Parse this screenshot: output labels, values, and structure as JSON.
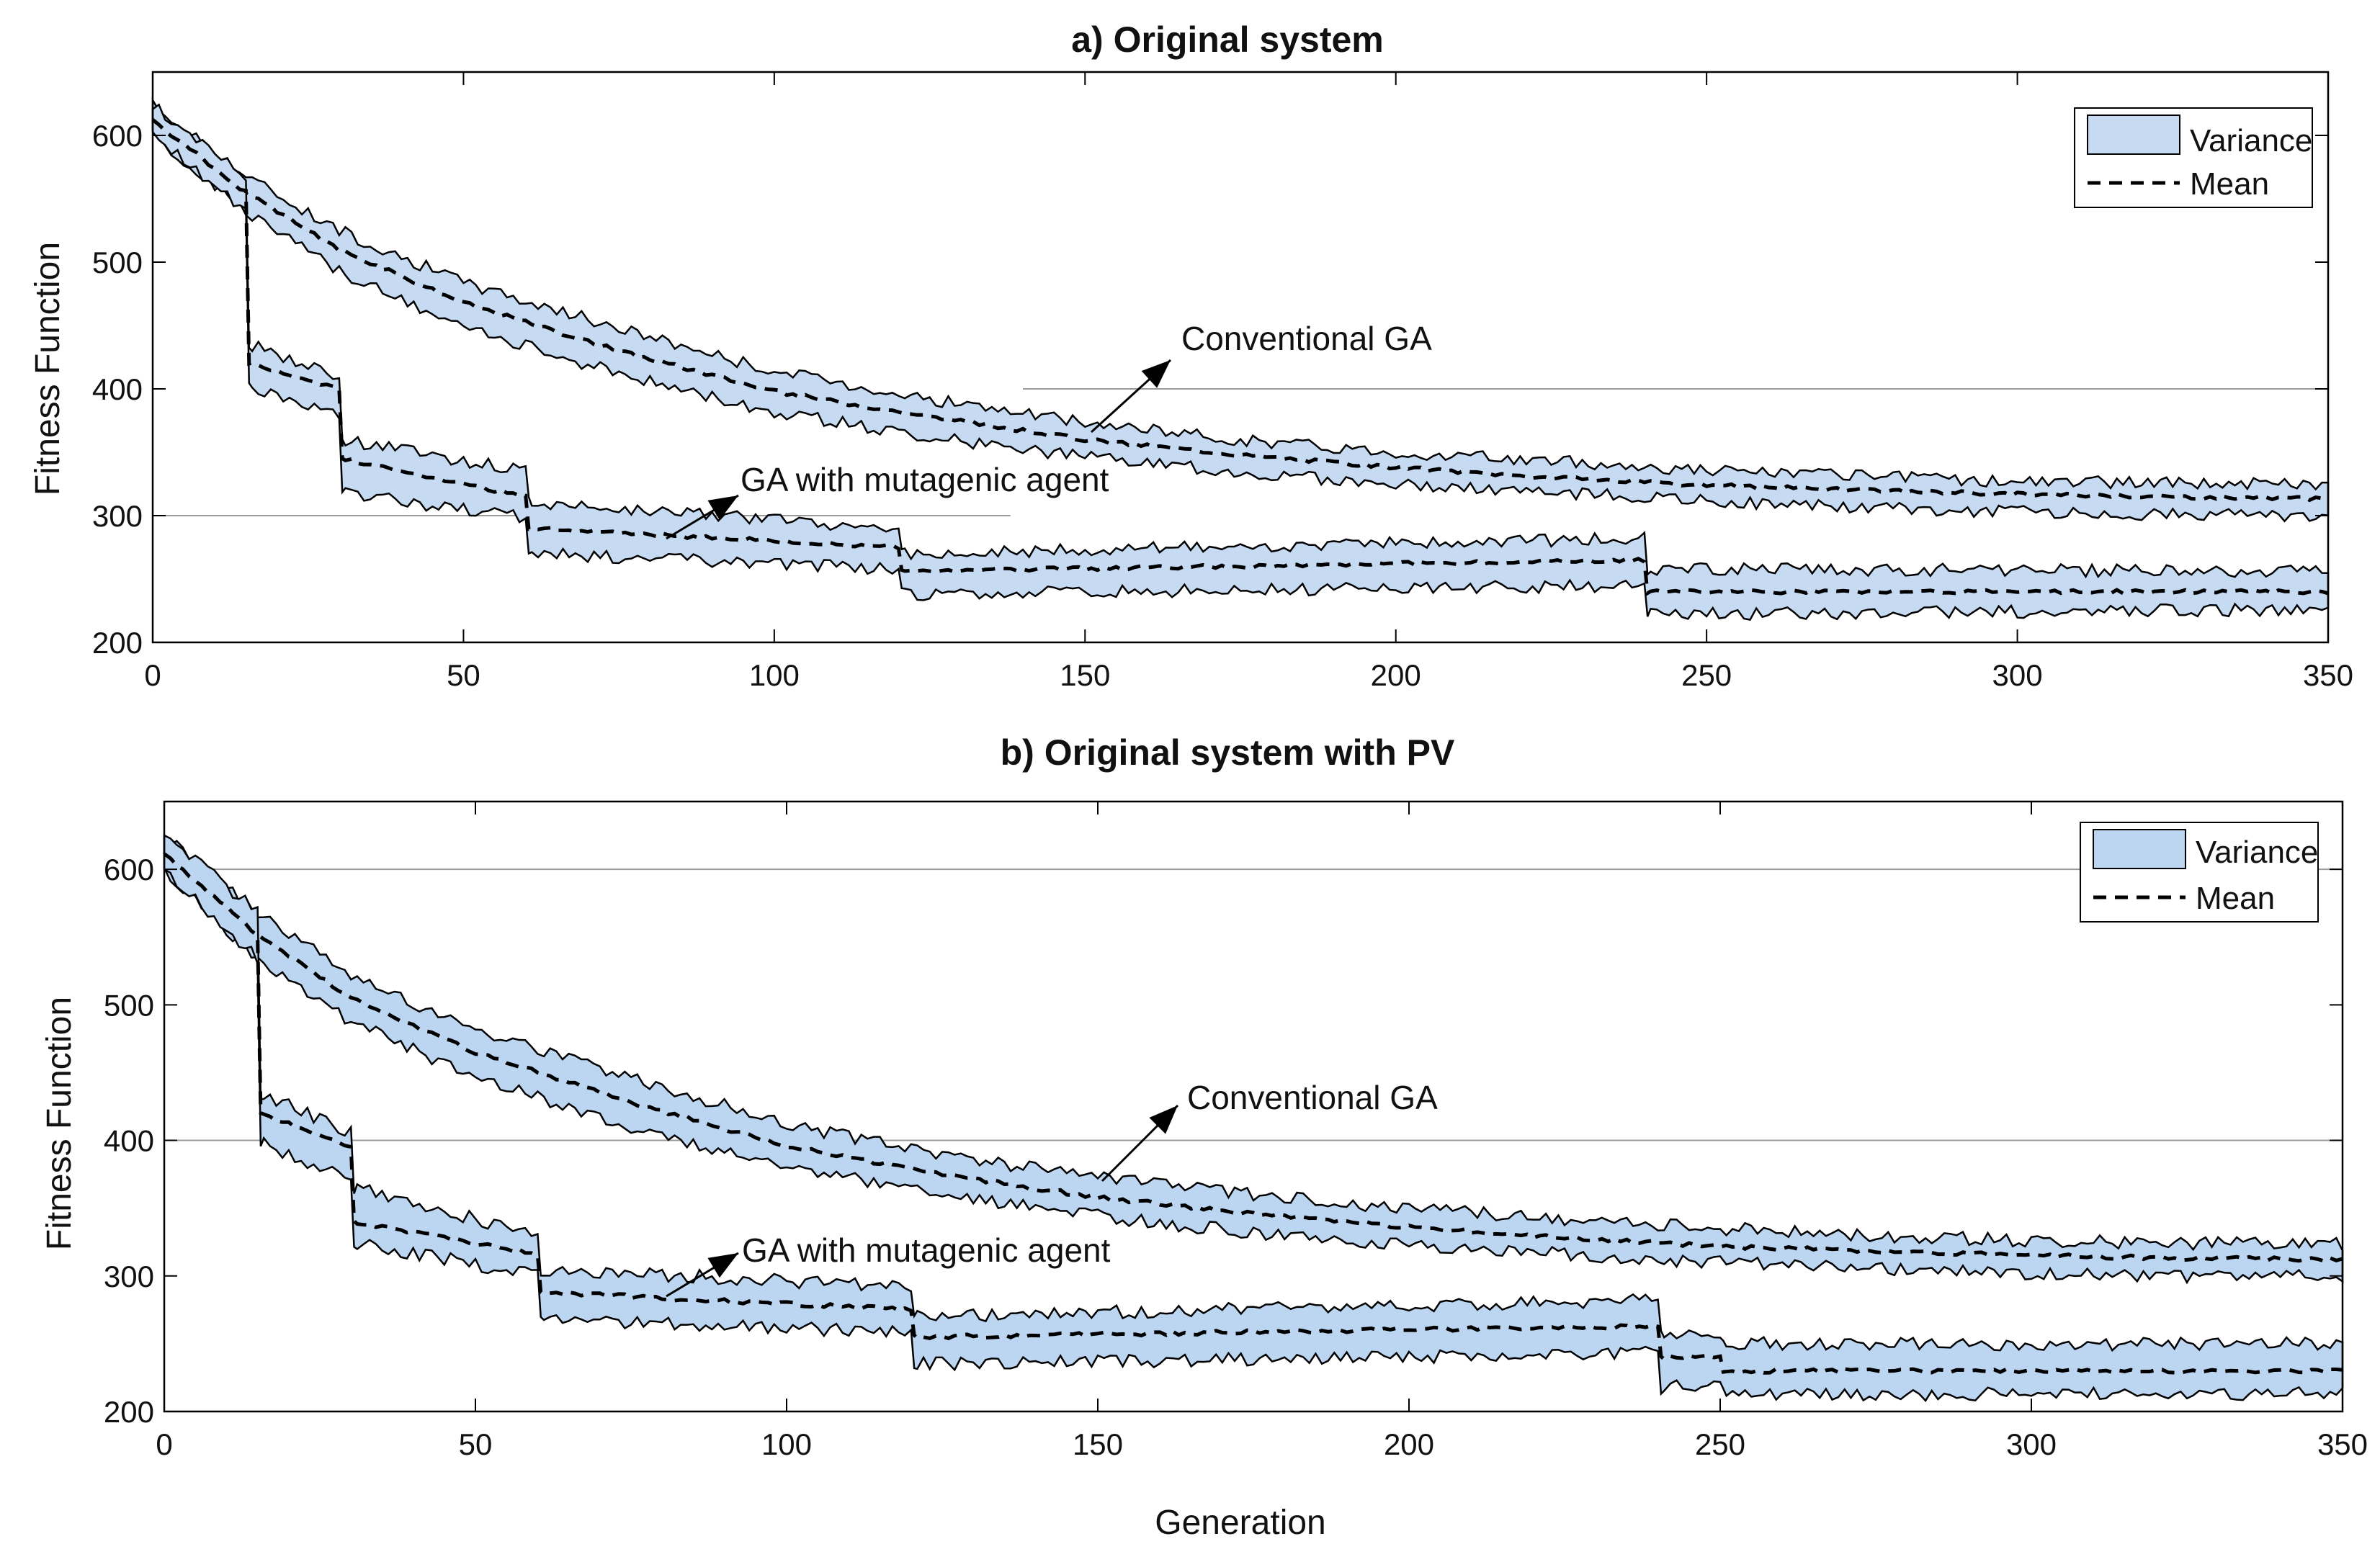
{
  "figure": {
    "xlabel": "Generation"
  },
  "chart_data": [
    {
      "type": "area",
      "title": "a) Original system",
      "xlabel": "",
      "ylabel": "Fitness Function",
      "xlim": [
        0,
        350
      ],
      "ylim": [
        200,
        650
      ],
      "xticks": [
        "0",
        "50",
        "100",
        "150",
        "200",
        "250",
        "300",
        "350"
      ],
      "yticks": [
        "200",
        "300",
        "400",
        "500",
        "600"
      ],
      "legend": {
        "position": "top-right",
        "variance": "Variance",
        "mean": "Mean"
      },
      "annotations": [
        {
          "text": "Conventional GA",
          "x": 165,
          "y": 440
        },
        {
          "text": "GA with mutagenic agent",
          "x": 95,
          "y": 320
        }
      ],
      "series": [
        {
          "name": "Conventional GA",
          "x": [
            0,
            15,
            30,
            50,
            75,
            100,
            125,
            150,
            175,
            200,
            225,
            250,
            275,
            300,
            325,
            350
          ],
          "mean": [
            612,
            555,
            510,
            468,
            430,
            398,
            378,
            360,
            348,
            338,
            330,
            324,
            320,
            317,
            315,
            313
          ],
          "lower": [
            600,
            540,
            492,
            448,
            412,
            382,
            362,
            346,
            334,
            325,
            318,
            312,
            306,
            303,
            301,
            300
          ],
          "upper": [
            624,
            568,
            525,
            484,
            448,
            414,
            392,
            373,
            360,
            350,
            343,
            336,
            331,
            327,
            326,
            325
          ]
        },
        {
          "name": "GA with mutagenic agent",
          "x": [
            0,
            15,
            15.5,
            30,
            30.5,
            60,
            60.5,
            120,
            120.5,
            240,
            240.5,
            350
          ],
          "mean": [
            612,
            555,
            420,
            400,
            345,
            315,
            290,
            275,
            256,
            265,
            240,
            240
          ],
          "lower": [
            600,
            540,
            400,
            378,
            318,
            298,
            270,
            258,
            238,
            245,
            222,
            226
          ],
          "upper": [
            624,
            568,
            435,
            410,
            360,
            335,
            310,
            290,
            270,
            282,
            258,
            256
          ]
        }
      ]
    },
    {
      "type": "area",
      "title": "b) Original system with PV",
      "xlabel": "Generation",
      "ylabel": "Fitness Function",
      "xlim": [
        0,
        350
      ],
      "ylim": [
        200,
        650
      ],
      "xticks": [
        "0",
        "50",
        "100",
        "150",
        "200",
        "250",
        "300",
        "350"
      ],
      "yticks": [
        "200",
        "300",
        "400",
        "500",
        "600"
      ],
      "legend": {
        "position": "top-right",
        "variance": "Variance",
        "mean": "Mean"
      },
      "annotations": [
        {
          "text": "Conventional GA",
          "x": 165,
          "y": 425
        },
        {
          "text": "GA with mutagenic agent",
          "x": 93,
          "y": 315
        }
      ],
      "series": [
        {
          "name": "Conventional GA",
          "x": [
            0,
            15,
            30,
            50,
            75,
            100,
            125,
            150,
            175,
            200,
            225,
            250,
            275,
            300,
            325,
            350
          ],
          "mean": [
            612,
            552,
            505,
            465,
            428,
            396,
            375,
            358,
            346,
            336,
            328,
            322,
            318,
            315,
            313,
            312
          ],
          "lower": [
            598,
            535,
            488,
            446,
            410,
            380,
            360,
            344,
            332,
            323,
            316,
            310,
            305,
            302,
            300,
            300
          ],
          "upper": [
            626,
            568,
            522,
            482,
            446,
            412,
            390,
            372,
            360,
            350,
            341,
            335,
            330,
            326,
            324,
            323
          ]
        },
        {
          "name": "GA with mutagenic agent",
          "x": [
            0,
            15,
            15.5,
            30,
            30.5,
            60,
            60.5,
            120,
            120.5,
            240,
            240.5,
            250,
            250.5,
            350
          ],
          "mean": [
            612,
            552,
            420,
            395,
            340,
            316,
            288,
            275,
            255,
            263,
            240,
            240,
            230,
            230
          ],
          "lower": [
            598,
            535,
            398,
            372,
            325,
            300,
            268,
            258,
            235,
            243,
            218,
            218,
            213,
            213
          ],
          "upper": [
            626,
            568,
            435,
            405,
            365,
            330,
            305,
            292,
            270,
            282,
            258,
            258,
            250,
            250
          ]
        }
      ]
    }
  ]
}
